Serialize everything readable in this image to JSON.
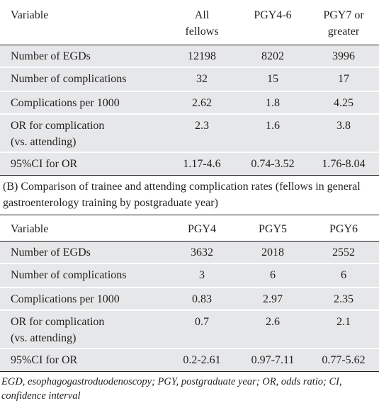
{
  "table_a": {
    "headers": [
      "Variable",
      "All fellows",
      "PGY4-6",
      "PGY7  or greater"
    ],
    "header_lines": [
      [
        "Variable"
      ],
      [
        "All",
        "fellows"
      ],
      [
        "PGY4-6"
      ],
      [
        "PGY7  or",
        "greater"
      ]
    ],
    "rows": [
      {
        "label": "Number of EGDs",
        "values": [
          "12198",
          "8202",
          "3996"
        ]
      },
      {
        "label": "Number of complications",
        "values": [
          "32",
          "15",
          "17"
        ]
      },
      {
        "label": "Complications per 1000",
        "values": [
          "2.62",
          "1.8",
          "4.25"
        ]
      },
      {
        "label_lines": [
          "OR for complication",
          "(vs. attending)"
        ],
        "values": [
          "2.3",
          "1.6",
          "3.8"
        ]
      },
      {
        "label": "95%CI for OR",
        "values": [
          "1.17-4.6",
          "0.74-3.52",
          "1.76-8.04"
        ]
      }
    ]
  },
  "caption_b": "(B) Comparison of trainee and attending complication rates (fellows in general gastroenterology training by postgraduate year)",
  "table_b": {
    "headers": [
      "Variable",
      "PGY4",
      "PGY5",
      "PGY6"
    ],
    "rows": [
      {
        "label": "Number of EGDs",
        "values": [
          "3632",
          "2018",
          "2552"
        ]
      },
      {
        "label": "Number of complications",
        "values": [
          "3",
          "6",
          "6"
        ]
      },
      {
        "label": "Complications per 1000",
        "values": [
          "0.83",
          "2.97",
          "2.35"
        ]
      },
      {
        "label_lines": [
          "OR for complication",
          "(vs. attending)"
        ],
        "values": [
          "0.7",
          "2.6",
          "2.1"
        ]
      },
      {
        "label": "95%CI for OR",
        "values": [
          "0.2-2.61",
          "0.97-7.11",
          "0.77-5.62"
        ]
      }
    ]
  },
  "footnote": "EGD, esophagogastroduodenoscopy; PGY, postgraduate year; OR, odds ratio; CI, confidence interval"
}
